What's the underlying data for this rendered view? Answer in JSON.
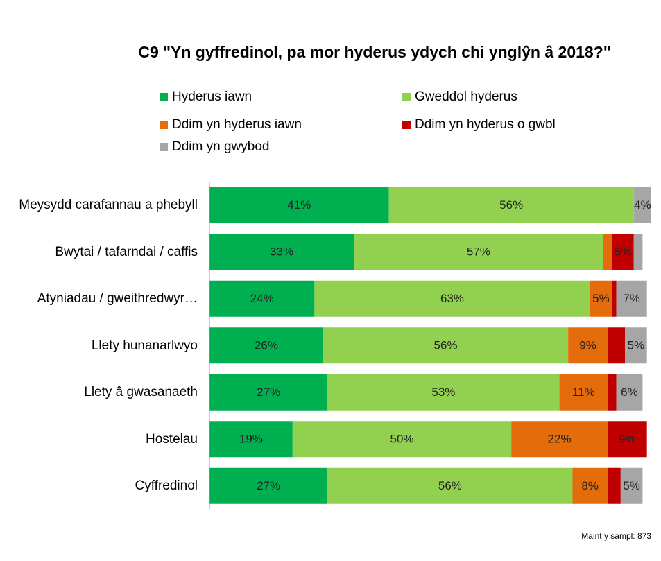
{
  "chart_data": {
    "type": "stacked-bar-horizontal",
    "title": "C9 \"Yn gyffredinol, pa mor hyderus ydych chi ynglŷn â 2018?\"",
    "categories": [
      "Meysydd carafannau a phebyll",
      "Bwytai / tafarndai / caffis",
      "Atyniadau / gweithredwyr…",
      "Llety hunanarlwyo",
      "Llety â gwasanaeth",
      "Hostelau",
      "Cyffredinol"
    ],
    "series": [
      {
        "name": "Hyderus iawn",
        "color": "#00b050",
        "values": [
          41,
          33,
          24,
          26,
          27,
          19,
          27
        ],
        "value_labels": [
          "41%",
          "33%",
          "24%",
          "26%",
          "27%",
          "19%",
          "27%"
        ]
      },
      {
        "name": "Gweddol hyderus",
        "color": "#92d050",
        "values": [
          56,
          57,
          63,
          56,
          53,
          50,
          56
        ],
        "value_labels": [
          "56%",
          "57%",
          "63%",
          "56%",
          "53%",
          "50%",
          "56%"
        ]
      },
      {
        "name": "Ddim yn hyderus iawn",
        "color": "#e46c0a",
        "values": [
          0,
          2,
          5,
          9,
          11,
          22,
          8
        ],
        "value_labels": [
          null,
          null,
          "5%",
          "9%",
          "11%",
          "22%",
          "8%"
        ]
      },
      {
        "name": "Ddim yn hyderus o gwbl",
        "color": "#c00000",
        "values": [
          0,
          5,
          1,
          4,
          2,
          9,
          3
        ],
        "value_labels": [
          null,
          "5%",
          null,
          null,
          null,
          "9%",
          null
        ]
      },
      {
        "name": "Ddim yn gwybod",
        "color": "#a6a6a6",
        "values": [
          4,
          2,
          7,
          5,
          6,
          0,
          5
        ],
        "value_labels": [
          "4%",
          null,
          "7%",
          "5%",
          "6%",
          null,
          "5%"
        ]
      }
    ],
    "xlim": [
      0,
      101
    ],
    "note": "Maint y sampl: 873"
  }
}
